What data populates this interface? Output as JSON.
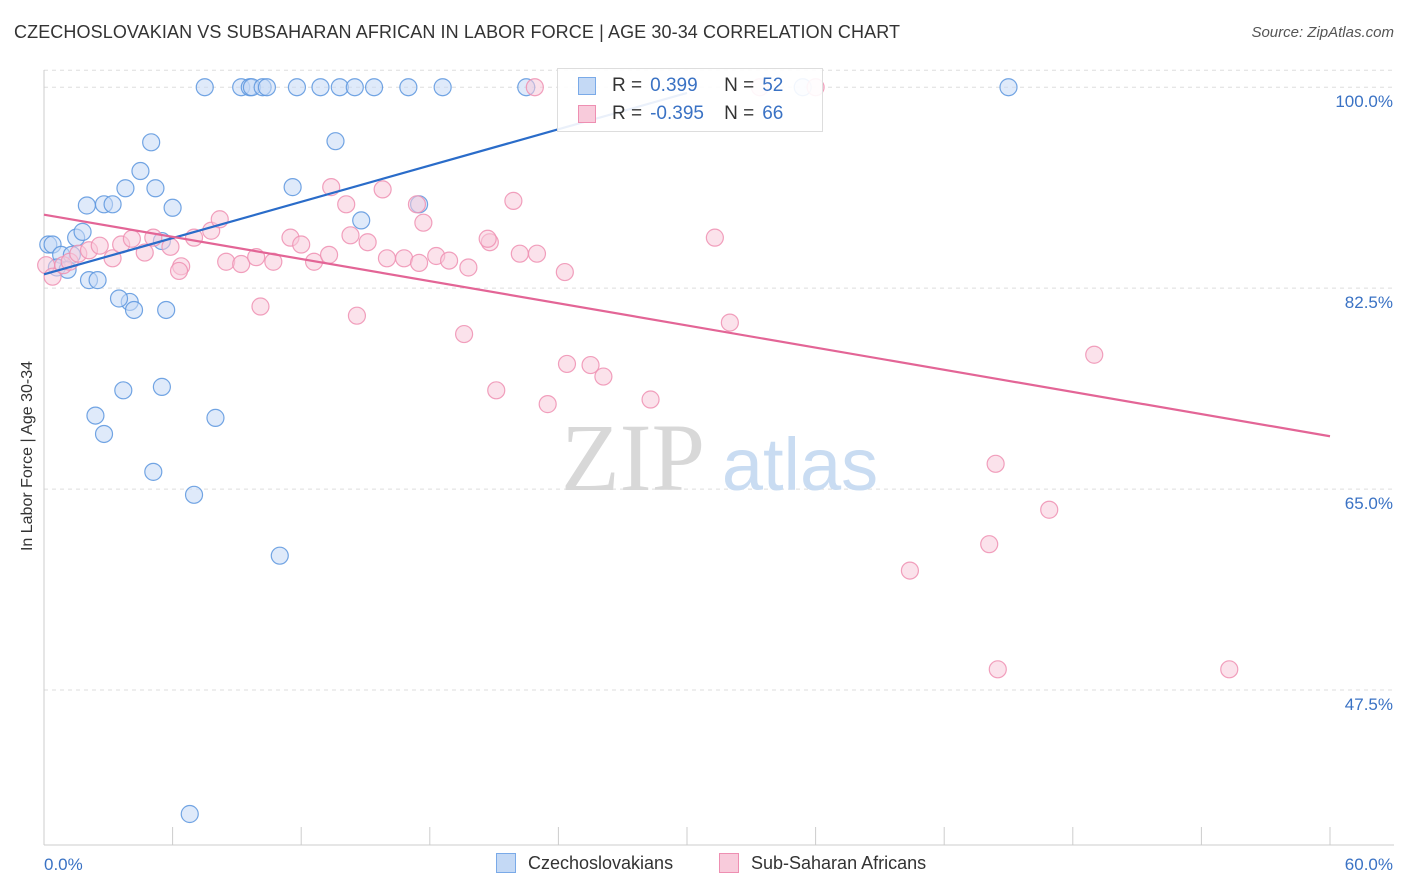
{
  "title": "CZECHOSLOVAKIAN VS SUBSAHARAN AFRICAN IN LABOR FORCE | AGE 30-34 CORRELATION CHART",
  "source": "Source: ZipAtlas.com",
  "watermark": {
    "zip": "ZIP",
    "atlas": "atlas"
  },
  "stats": [
    {
      "r_label": "R =",
      "r_value": "0.399",
      "n_label": "N =",
      "n_value": "52",
      "color": "#7aaae8",
      "fill": "#c4d9f5"
    },
    {
      "r_label": "R =",
      "r_value": "-0.395",
      "n_label": "N =",
      "n_value": "66",
      "color": "#ee8fb2",
      "fill": "#f8cbdb"
    }
  ],
  "legend": [
    {
      "label": "Czechoslovakians",
      "color": "#7aaae8",
      "fill": "#c4d9f5"
    },
    {
      "label": "Sub-Saharan Africans",
      "color": "#ee8fb2",
      "fill": "#f8cbdb"
    }
  ],
  "chart_data": {
    "type": "scatter",
    "title": "CZECHOSLOVAKIAN VS SUBSAHARAN AFRICAN IN LABOR FORCE | AGE 30-34 CORRELATION CHART",
    "xlabel": "",
    "ylabel": "In Labor Force | Age 30-34",
    "xlim": [
      0,
      60
    ],
    "ylim": [
      34,
      101.5
    ],
    "x_tick_labels": [
      "0.0%",
      "60.0%"
    ],
    "y_ticks": [
      47.5,
      65.0,
      82.5,
      100.0
    ],
    "y_tick_labels": [
      "47.5%",
      "65.0%",
      "82.5%",
      "100.0%"
    ],
    "grid": true,
    "series": [
      {
        "name": "Czechoslovakians",
        "color": "#5b95de",
        "fill": "#c4d9f5",
        "trend": {
          "x": [
            0.0,
            30.0
          ],
          "y": [
            83.7,
            99.5
          ],
          "color": "#2a6cc9"
        },
        "points": [
          [
            0.2,
            86.3
          ],
          [
            0.4,
            86.3
          ],
          [
            0.8,
            85.4
          ],
          [
            1.3,
            85.4
          ],
          [
            1.5,
            86.9
          ],
          [
            1.8,
            87.4
          ],
          [
            2.0,
            89.7
          ],
          [
            2.1,
            83.2
          ],
          [
            2.5,
            83.2
          ],
          [
            2.8,
            89.8
          ],
          [
            3.2,
            89.8
          ],
          [
            3.8,
            91.2
          ],
          [
            4.0,
            81.3
          ],
          [
            4.2,
            80.6
          ],
          [
            4.5,
            92.7
          ],
          [
            5.0,
            95.2
          ],
          [
            5.2,
            91.2
          ],
          [
            5.5,
            86.6
          ],
          [
            6.0,
            89.5
          ],
          [
            3.5,
            81.6
          ],
          [
            5.7,
            80.6
          ],
          [
            3.7,
            73.6
          ],
          [
            2.4,
            71.4
          ],
          [
            2.8,
            69.8
          ],
          [
            5.5,
            73.9
          ],
          [
            5.1,
            66.5
          ],
          [
            7.0,
            64.5
          ],
          [
            8.0,
            71.2
          ],
          [
            6.8,
            36.7
          ],
          [
            7.5,
            100.0
          ],
          [
            9.2,
            100.0
          ],
          [
            9.6,
            100.0
          ],
          [
            9.7,
            100.0
          ],
          [
            10.2,
            100.0
          ],
          [
            10.4,
            100.0
          ],
          [
            11.8,
            100.0
          ],
          [
            12.9,
            100.0
          ],
          [
            13.8,
            100.0
          ],
          [
            14.5,
            100.0
          ],
          [
            15.4,
            100.0
          ],
          [
            17.0,
            100.0
          ],
          [
            18.6,
            100.0
          ],
          [
            22.5,
            100.0
          ],
          [
            35.4,
            100.0
          ],
          [
            45.0,
            100.0
          ],
          [
            11.6,
            91.3
          ],
          [
            13.6,
            95.3
          ],
          [
            14.8,
            88.4
          ],
          [
            17.5,
            89.8
          ],
          [
            11.0,
            59.2
          ],
          [
            0.6,
            84.3
          ],
          [
            1.1,
            84.1
          ]
        ]
      },
      {
        "name": "Sub-Saharan Africans",
        "color": "#ee8fb2",
        "fill": "#f8cbdb",
        "trend": {
          "x": [
            0.0,
            60.0
          ],
          "y": [
            88.9,
            69.6
          ],
          "color": "#e36596"
        },
        "points": [
          [
            0.1,
            84.5
          ],
          [
            0.4,
            83.5
          ],
          [
            0.9,
            84.5
          ],
          [
            1.2,
            84.8
          ],
          [
            1.6,
            85.5
          ],
          [
            2.1,
            85.8
          ],
          [
            2.6,
            86.2
          ],
          [
            3.2,
            85.1
          ],
          [
            3.6,
            86.3
          ],
          [
            4.1,
            86.8
          ],
          [
            4.7,
            85.6
          ],
          [
            5.1,
            86.9
          ],
          [
            5.9,
            86.1
          ],
          [
            6.4,
            84.4
          ],
          [
            7.0,
            86.9
          ],
          [
            7.8,
            87.5
          ],
          [
            8.5,
            84.8
          ],
          [
            9.2,
            84.6
          ],
          [
            9.9,
            85.2
          ],
          [
            10.7,
            84.8
          ],
          [
            11.5,
            86.9
          ],
          [
            12.6,
            84.8
          ],
          [
            13.3,
            85.4
          ],
          [
            14.3,
            87.1
          ],
          [
            15.1,
            86.5
          ],
          [
            16.0,
            85.1
          ],
          [
            16.8,
            85.1
          ],
          [
            17.5,
            84.7
          ],
          [
            18.3,
            85.3
          ],
          [
            18.9,
            84.9
          ],
          [
            19.8,
            84.3
          ],
          [
            20.8,
            86.5
          ],
          [
            22.2,
            85.5
          ],
          [
            23.0,
            85.5
          ],
          [
            24.3,
            83.9
          ],
          [
            6.3,
            84.0
          ],
          [
            8.2,
            88.5
          ],
          [
            12.0,
            86.3
          ],
          [
            13.4,
            91.3
          ],
          [
            14.1,
            89.8
          ],
          [
            15.8,
            91.1
          ],
          [
            17.4,
            89.8
          ],
          [
            17.7,
            88.2
          ],
          [
            20.7,
            86.8
          ],
          [
            21.9,
            90.1
          ],
          [
            10.1,
            80.9
          ],
          [
            14.6,
            80.1
          ],
          [
            19.6,
            78.5
          ],
          [
            21.1,
            73.6
          ],
          [
            23.5,
            72.4
          ],
          [
            24.4,
            75.9
          ],
          [
            25.5,
            75.8
          ],
          [
            26.1,
            74.8
          ],
          [
            28.3,
            72.8
          ],
          [
            32.0,
            79.5
          ],
          [
            31.3,
            86.9
          ],
          [
            36.0,
            100.0
          ],
          [
            40.4,
            57.9
          ],
          [
            44.1,
            60.2
          ],
          [
            44.4,
            67.2
          ],
          [
            46.9,
            63.2
          ],
          [
            49.0,
            76.7
          ],
          [
            44.5,
            49.3
          ],
          [
            55.3,
            49.3
          ],
          [
            22.9,
            100.0
          ],
          [
            33.4,
            100.0
          ]
        ]
      }
    ]
  }
}
